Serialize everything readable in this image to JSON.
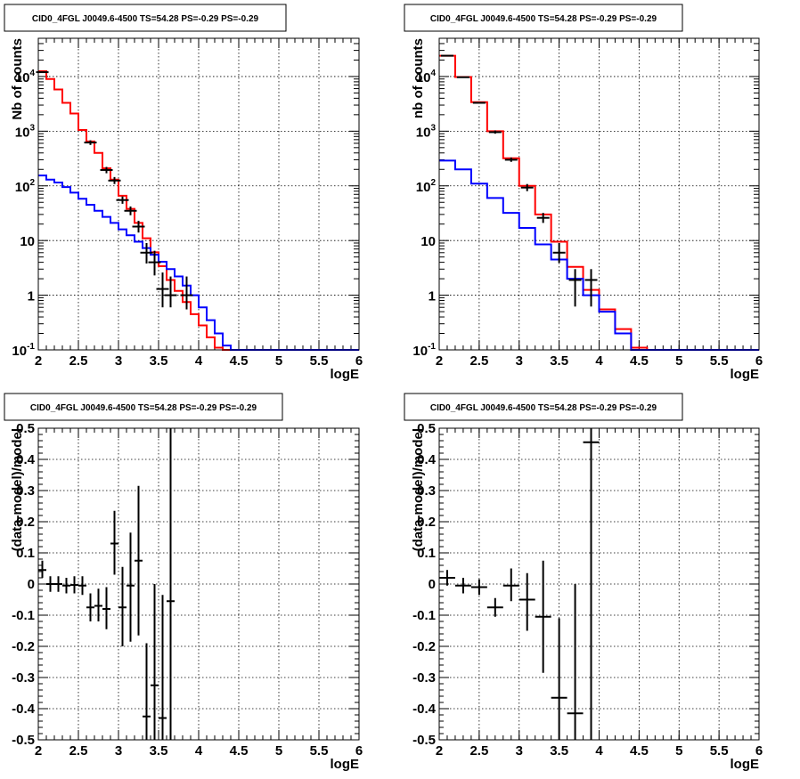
{
  "chart_data": [
    {
      "type": "line",
      "title": "CID0_4FGL J0049.6-4500 TS=54.28 PS=-0.29 PS=-0.29",
      "xlabel": "logE",
      "ylabel": "Nb of counts",
      "xlim": [
        2,
        6
      ],
      "ylim": [
        0.1,
        50000
      ],
      "yscale": "log",
      "grid": true,
      "x_ticks": [
        "2",
        "2.5",
        "3",
        "3.5",
        "4",
        "4.5",
        "5",
        "5.5",
        "6"
      ],
      "y_ticks": [
        {
          "value": 0.1,
          "label": "10",
          "exp": "-1"
        },
        {
          "value": 1,
          "label": "1",
          "exp": ""
        },
        {
          "value": 10,
          "label": "10",
          "exp": ""
        },
        {
          "value": 100,
          "label": "10",
          "exp": "2"
        },
        {
          "value": 1000,
          "label": "10",
          "exp": "3"
        },
        {
          "value": 10000,
          "label": "10",
          "exp": "4"
        }
      ],
      "bin_edges": [
        2,
        2.1,
        2.2,
        2.3,
        2.4,
        2.5,
        2.6,
        2.7,
        2.8,
        2.9,
        3.0,
        3.1,
        3.2,
        3.3,
        3.4,
        3.5,
        3.6,
        3.7,
        3.8,
        3.9,
        4.0,
        4.1,
        4.2,
        4.3,
        4.4,
        4.5,
        4.6,
        4.7,
        4.8,
        4.9,
        5.0,
        5.1,
        5.2,
        5.3,
        5.4,
        5.5,
        5.6,
        5.7,
        5.8,
        5.9,
        6.0
      ],
      "series": [
        {
          "kind": "step",
          "color": "#ff0000",
          "values": [
            12500,
            9000,
            5800,
            3300,
            2100,
            1050,
            650,
            400,
            210,
            130,
            66,
            38,
            21,
            11,
            6.1,
            3.4,
            1.9,
            1.2,
            0.75,
            0.45,
            0.28,
            0.17,
            0.11,
            0.1,
            0.1,
            0.1,
            0.1,
            0.1,
            0.1,
            0.1,
            0.1,
            0.1,
            0.1,
            0.1,
            0.1,
            0.1,
            0.1,
            0.1,
            0.1,
            0.1
          ]
        },
        {
          "kind": "step",
          "color": "#0000ff",
          "values": [
            155,
            130,
            115,
            95,
            75,
            58,
            45,
            35,
            27,
            21,
            16,
            12.5,
            9.5,
            7.3,
            5.5,
            4.1,
            3.0,
            2.2,
            1.5,
            1.0,
            0.6,
            0.35,
            0.2,
            0.12,
            0.1,
            0.1,
            0.1,
            0.1,
            0.1,
            0.1,
            0.1,
            0.1,
            0.1,
            0.1,
            0.1,
            0.1,
            0.1,
            0.1,
            0.1,
            0.1
          ]
        },
        {
          "kind": "points",
          "color": "#000000",
          "points": [
            {
              "x": 2.05,
              "y": 12000
            },
            {
              "x": 2.65,
              "y": 620,
              "ylo": 560,
              "yhi": 680
            },
            {
              "x": 2.85,
              "y": 195,
              "ylo": 170,
              "yhi": 222
            },
            {
              "x": 2.95,
              "y": 125,
              "ylo": 108,
              "yhi": 145
            },
            {
              "x": 3.05,
              "y": 55,
              "ylo": 47,
              "yhi": 64
            },
            {
              "x": 3.15,
              "y": 35,
              "ylo": 29,
              "yhi": 42
            },
            {
              "x": 3.25,
              "y": 18,
              "ylo": 14,
              "yhi": 23
            },
            {
              "x": 3.35,
              "y": 6,
              "ylo": 3.8,
              "yhi": 9
            },
            {
              "x": 3.45,
              "y": 4,
              "ylo": 2.3,
              "yhi": 6.5
            },
            {
              "x": 3.55,
              "y": 1.3,
              "ylo": 0.6,
              "yhi": 2.6
            },
            {
              "x": 3.65,
              "y": 1.0,
              "ylo": 0.6,
              "yhi": 2.2
            },
            {
              "x": 3.85,
              "y": 1.0,
              "ylo": 0.55,
              "yhi": 2.2
            }
          ]
        }
      ]
    },
    {
      "type": "line",
      "title": "CID0_4FGL J0049.6-4500 TS=54.28 PS=-0.29 PS=-0.29",
      "xlabel": "logE",
      "ylabel": "nb of counts",
      "xlim": [
        2,
        6
      ],
      "ylim": [
        0.1,
        50000
      ],
      "yscale": "log",
      "grid": true,
      "x_ticks": [
        "2",
        "2.5",
        "3",
        "3.5",
        "4",
        "4.5",
        "5",
        "5.5",
        "6"
      ],
      "y_ticks": [
        {
          "value": 0.1,
          "label": "10",
          "exp": "-1"
        },
        {
          "value": 1,
          "label": "1",
          "exp": ""
        },
        {
          "value": 10,
          "label": "10",
          "exp": ""
        },
        {
          "value": 100,
          "label": "10",
          "exp": "2"
        },
        {
          "value": 1000,
          "label": "10",
          "exp": "3"
        },
        {
          "value": 10000,
          "label": "10",
          "exp": "4"
        }
      ],
      "bin_edges": [
        2,
        2.2,
        2.4,
        2.6,
        2.8,
        3.0,
        3.2,
        3.4,
        3.6,
        3.8,
        4.0,
        4.2,
        4.4,
        4.6,
        4.8,
        5.0,
        5.2,
        5.4,
        5.6,
        5.8,
        6.0
      ],
      "series": [
        {
          "kind": "step",
          "color": "#ff0000",
          "values": [
            24000,
            9800,
            3400,
            1000,
            320,
            100,
            30,
            9.5,
            3.3,
            1.25,
            0.55,
            0.24,
            0.11,
            0.1,
            0.1,
            0.1,
            0.1,
            0.1,
            0.1,
            0.1
          ]
        },
        {
          "kind": "step",
          "color": "#0000ff",
          "values": [
            290,
            200,
            110,
            60,
            32,
            17,
            8.5,
            4.5,
            2.0,
            1.0,
            0.5,
            0.2,
            0.1,
            0.1,
            0.1,
            0.1,
            0.1,
            0.1,
            0.1,
            0.1
          ]
        },
        {
          "kind": "points",
          "color": "#000000",
          "points": [
            {
              "x": 2.1,
              "y": 24000
            },
            {
              "x": 2.3,
              "y": 9700
            },
            {
              "x": 2.5,
              "y": 3300
            },
            {
              "x": 2.7,
              "y": 960,
              "ylo": 900,
              "yhi": 1030
            },
            {
              "x": 2.9,
              "y": 300,
              "ylo": 275,
              "yhi": 330
            },
            {
              "x": 3.1,
              "y": 93,
              "ylo": 80,
              "yhi": 108
            },
            {
              "x": 3.3,
              "y": 26,
              "ylo": 21,
              "yhi": 32
            },
            {
              "x": 3.5,
              "y": 6.0,
              "ylo": 3.9,
              "yhi": 9.0
            },
            {
              "x": 3.7,
              "y": 1.9,
              "ylo": 0.62,
              "yhi": 3.0
            },
            {
              "x": 3.9,
              "y": 1.9,
              "ylo": 0.62,
              "yhi": 3.0
            }
          ]
        }
      ]
    },
    {
      "type": "scatter",
      "title": "CID0_4FGL J0049.6-4500 TS=54.28 PS=-0.29 PS=-0.29",
      "xlabel": "logE",
      "ylabel": "(data-model)/model",
      "xlim": [
        2,
        6
      ],
      "ylim": [
        -0.5,
        0.5
      ],
      "grid": true,
      "x_ticks": [
        "2",
        "2.5",
        "3",
        "3.5",
        "4",
        "4.5",
        "5",
        "5.5",
        "6"
      ],
      "y_ticks": [
        "-0.5",
        "-0.4",
        "-0.3",
        "-0.2",
        "-0.1",
        "0",
        "0.1",
        "0.2",
        "0.3",
        "0.4",
        "0.5"
      ],
      "x_half_width": 0.05,
      "points": [
        {
          "x": 2.05,
          "y": 0.045,
          "ylo": 0.02,
          "yhi": 0.075
        },
        {
          "x": 2.15,
          "y": 0.0,
          "ylo": -0.025,
          "yhi": 0.025
        },
        {
          "x": 2.25,
          "y": 0.0,
          "ylo": -0.025,
          "yhi": 0.025
        },
        {
          "x": 2.35,
          "y": -0.005,
          "ylo": -0.03,
          "yhi": 0.02
        },
        {
          "x": 2.45,
          "y": -0.003,
          "ylo": -0.03,
          "yhi": 0.025
        },
        {
          "x": 2.55,
          "y": -0.005,
          "ylo": -0.035,
          "yhi": 0.025
        },
        {
          "x": 2.65,
          "y": -0.075,
          "ylo": -0.12,
          "yhi": -0.03
        },
        {
          "x": 2.75,
          "y": -0.07,
          "ylo": -0.12,
          "yhi": -0.015
        },
        {
          "x": 2.85,
          "y": -0.08,
          "ylo": -0.145,
          "yhi": -0.01
        },
        {
          "x": 2.95,
          "y": 0.13,
          "ylo": 0.03,
          "yhi": 0.235
        },
        {
          "x": 3.05,
          "y": -0.075,
          "ylo": -0.2,
          "yhi": 0.055
        },
        {
          "x": 3.15,
          "y": -0.005,
          "ylo": -0.185,
          "yhi": 0.165
        },
        {
          "x": 3.25,
          "y": 0.075,
          "ylo": -0.165,
          "yhi": 0.315
        },
        {
          "x": 3.35,
          "y": -0.425,
          "ylo": -0.5,
          "yhi": -0.19
        },
        {
          "x": 3.45,
          "y": -0.325,
          "ylo": -0.5,
          "yhi": -0.0
        },
        {
          "x": 3.55,
          "y": -0.43,
          "ylo": -0.5,
          "yhi": -0.035
        },
        {
          "x": 3.65,
          "y": -0.055,
          "ylo": -0.5,
          "yhi": 0.5
        }
      ]
    },
    {
      "type": "scatter",
      "title": "CID0_4FGL J0049.6-4500 TS=54.28 PS=-0.29 PS=-0.29",
      "xlabel": "logE",
      "ylabel": "(data-model)/model",
      "xlim": [
        2,
        6
      ],
      "ylim": [
        -0.5,
        0.5
      ],
      "grid": true,
      "x_ticks": [
        "2",
        "2.5",
        "3",
        "3.5",
        "4",
        "4.5",
        "5",
        "5.5",
        "6"
      ],
      "y_ticks": [
        "-0.5",
        "-0.4",
        "-0.3",
        "-0.2",
        "-0.1",
        "0",
        "0.1",
        "0.2",
        "0.3",
        "0.4",
        "0.5"
      ],
      "x_half_width": 0.1,
      "points": [
        {
          "x": 2.1,
          "y": 0.02,
          "ylo": -0.005,
          "yhi": 0.045
        },
        {
          "x": 2.3,
          "y": -0.005,
          "ylo": -0.03,
          "yhi": 0.02
        },
        {
          "x": 2.5,
          "y": -0.01,
          "ylo": -0.035,
          "yhi": 0.015
        },
        {
          "x": 2.7,
          "y": -0.075,
          "ylo": -0.105,
          "yhi": -0.045
        },
        {
          "x": 2.9,
          "y": -0.005,
          "ylo": -0.055,
          "yhi": 0.05
        },
        {
          "x": 3.1,
          "y": -0.05,
          "ylo": -0.15,
          "yhi": 0.035
        },
        {
          "x": 3.3,
          "y": -0.105,
          "ylo": -0.285,
          "yhi": 0.075
        },
        {
          "x": 3.5,
          "y": -0.365,
          "ylo": -0.5,
          "yhi": -0.11
        },
        {
          "x": 3.7,
          "y": -0.415,
          "ylo": -0.5,
          "yhi": 0.0
        },
        {
          "x": 3.9,
          "y": 0.455,
          "ylo": -0.5,
          "yhi": 0.5
        }
      ]
    }
  ]
}
